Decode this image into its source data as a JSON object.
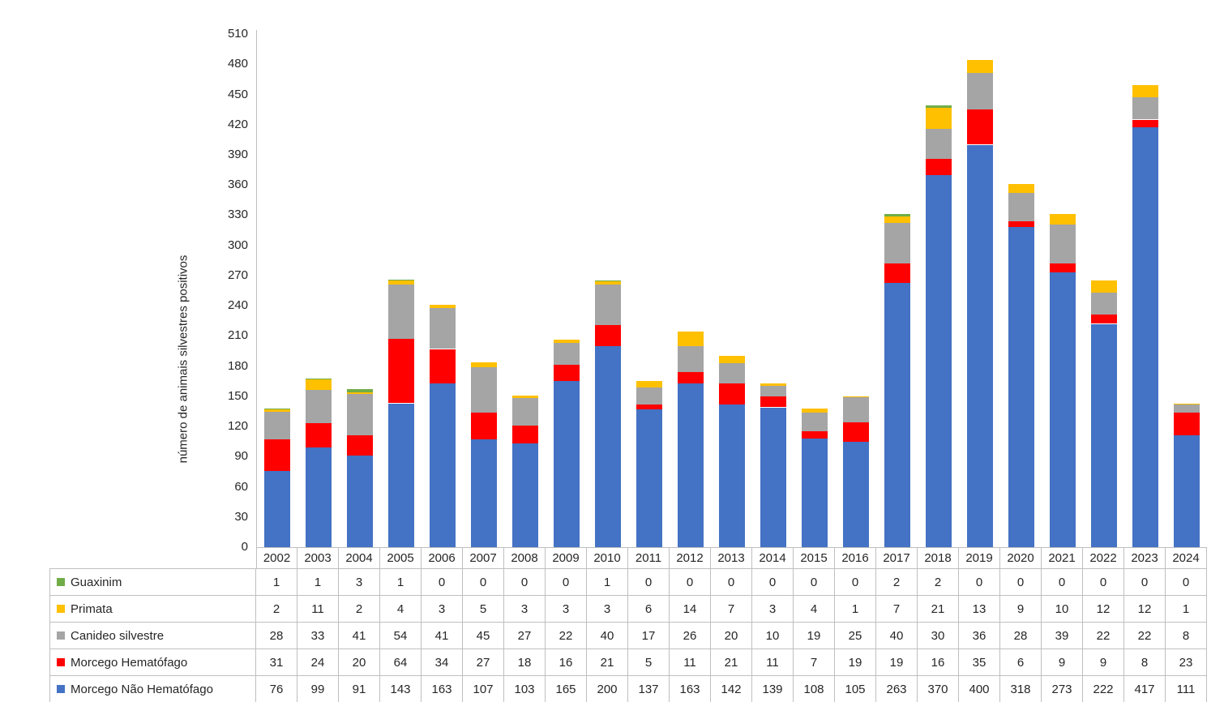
{
  "chart_data": {
    "type": "bar",
    "stacked": true,
    "title": "",
    "xlabel": "",
    "ylabel": "número de animais silvestres positivos",
    "ylim": [
      0,
      510
    ],
    "ytick_step": 30,
    "grid": false,
    "legend_position": "data-table-left",
    "axis_color": "#bfbfbf",
    "categories": [
      "2002",
      "2003",
      "2004",
      "2005",
      "2006",
      "2007",
      "2008",
      "2009",
      "2010",
      "2011",
      "2012",
      "2013",
      "2014",
      "2015",
      "2016",
      "2017",
      "2018",
      "2019",
      "2020",
      "2021",
      "2022",
      "2023",
      "2024"
    ],
    "series": [
      {
        "name": "Guaxinim",
        "color": "#70AD47",
        "values": [
          1,
          1,
          3,
          1,
          0,
          0,
          0,
          0,
          1,
          0,
          0,
          0,
          0,
          0,
          0,
          2,
          2,
          0,
          0,
          0,
          0,
          0,
          0
        ]
      },
      {
        "name": "Primata",
        "color": "#FFC000",
        "values": [
          2,
          11,
          2,
          4,
          3,
          5,
          3,
          3,
          3,
          6,
          14,
          7,
          3,
          4,
          1,
          7,
          21,
          13,
          9,
          10,
          12,
          12,
          1
        ]
      },
      {
        "name": "Canideo silvestre",
        "color": "#A5A5A5",
        "values": [
          28,
          33,
          41,
          54,
          41,
          45,
          27,
          22,
          40,
          17,
          26,
          20,
          10,
          19,
          25,
          40,
          30,
          36,
          28,
          39,
          22,
          22,
          8
        ]
      },
      {
        "name": "Morcego Hematófago",
        "color": "#FF0000",
        "values": [
          31,
          24,
          20,
          64,
          34,
          27,
          18,
          16,
          21,
          5,
          11,
          21,
          11,
          7,
          19,
          19,
          16,
          35,
          6,
          9,
          9,
          8,
          23
        ]
      },
      {
        "name": "Morcego Não Hematófago",
        "color": "#4472C4",
        "values": [
          76,
          99,
          91,
          143,
          163,
          107,
          103,
          165,
          200,
          137,
          163,
          142,
          139,
          108,
          105,
          263,
          370,
          400,
          318,
          273,
          222,
          417,
          111
        ]
      }
    ],
    "stack_order_bottom_to_top": [
      "Morcego Não Hematófago",
      "Morcego Hematófago",
      "Canideo silvestre",
      "Primata",
      "Guaxinim"
    ]
  }
}
